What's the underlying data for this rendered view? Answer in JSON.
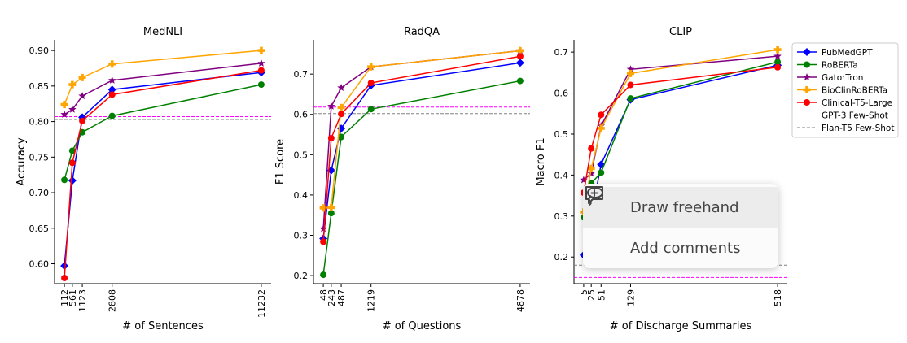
{
  "chart_data": [
    {
      "type": "line",
      "title": "MedNLI",
      "xlabel": "# of Sentences",
      "ylabel": "Accuracy",
      "x": [
        112,
        561,
        1123,
        2808,
        11232
      ],
      "xticks": [
        "112",
        "561",
        "1123",
        "2808",
        "11232"
      ],
      "ylim": [
        0.572,
        0.915
      ],
      "yticks": [
        0.6,
        0.65,
        0.7,
        0.75,
        0.8,
        0.85,
        0.9
      ],
      "ytick_labels": [
        "0.60",
        "0.65",
        "0.70",
        "0.75",
        "0.80",
        "0.85",
        "0.90"
      ],
      "series": [
        {
          "name": "PubMedGPT",
          "values": [
            0.597,
            0.717,
            0.806,
            0.845,
            0.869
          ]
        },
        {
          "name": "RoBERTa",
          "values": [
            0.718,
            0.759,
            0.785,
            0.808,
            0.852
          ]
        },
        {
          "name": "GatorTron",
          "values": [
            0.81,
            0.817,
            0.836,
            0.858,
            0.882
          ]
        },
        {
          "name": "BioClinRoBERTa",
          "values": [
            0.824,
            0.852,
            0.862,
            0.881,
            0.9
          ]
        },
        {
          "name": "Clinical-T5-Large",
          "values": [
            0.58,
            0.742,
            0.801,
            0.838,
            0.872
          ]
        }
      ],
      "hlines": [
        {
          "name": "GPT-3 Few-Shot",
          "value": 0.807
        },
        {
          "name": "Flan-T5 Few-Shot",
          "value": 0.803
        }
      ]
    },
    {
      "type": "line",
      "title": "RadQA",
      "xlabel": "# of Questions",
      "ylabel": "F1 Score",
      "x": [
        48,
        243,
        487,
        1219,
        4878
      ],
      "xticks": [
        "48",
        "243",
        "487",
        "1219",
        "4878"
      ],
      "ylim": [
        0.18,
        0.785
      ],
      "yticks": [
        0.2,
        0.3,
        0.4,
        0.5,
        0.6,
        0.7
      ],
      "ytick_labels": [
        "0.2",
        "0.3",
        "0.4",
        "0.5",
        "0.6",
        "0.7"
      ],
      "series": [
        {
          "name": "PubMedGPT",
          "values": [
            0.292,
            0.461,
            0.565,
            0.672,
            0.728
          ]
        },
        {
          "name": "RoBERTa",
          "values": [
            0.202,
            0.355,
            0.544,
            0.613,
            0.683
          ]
        },
        {
          "name": "GatorTron",
          "values": [
            0.316,
            0.62,
            0.666,
            0.718,
            0.758
          ]
        },
        {
          "name": "BioClinRoBERTa",
          "values": [
            0.368,
            0.369,
            0.617,
            0.718,
            0.758
          ]
        },
        {
          "name": "Clinical-T5-Large",
          "values": [
            0.284,
            0.541,
            0.601,
            0.678,
            0.744
          ]
        }
      ],
      "hlines": [
        {
          "name": "GPT-3 Few-Shot",
          "value": 0.618
        },
        {
          "name": "Flan-T5 Few-Shot",
          "value": 0.602
        }
      ]
    },
    {
      "type": "line",
      "title": "CLIP",
      "xlabel": "# of Discharge Summaries",
      "ylabel": "Macro F1",
      "x": [
        5,
        25,
        51,
        129,
        518
      ],
      "xticks": [
        "5",
        "25",
        "51",
        "129",
        "518"
      ],
      "ylim": [
        0.135,
        0.73
      ],
      "yticks": [
        0.2,
        0.3,
        0.4,
        0.5,
        0.6,
        0.7
      ],
      "ytick_labels": [
        "0.2",
        "0.3",
        "0.4",
        "0.5",
        "0.6",
        "0.7"
      ],
      "series": [
        {
          "name": "PubMedGPT",
          "values": [
            0.205,
            0.3,
            0.426,
            0.584,
            0.668
          ]
        },
        {
          "name": "RoBERTa",
          "values": [
            0.297,
            0.38,
            0.406,
            0.587,
            0.676
          ]
        },
        {
          "name": "GatorTron",
          "values": [
            0.388,
            0.404,
            0.52,
            0.658,
            0.69
          ]
        },
        {
          "name": "BioClinRoBERTa",
          "values": [
            0.31,
            0.416,
            0.514,
            0.648,
            0.706
          ]
        },
        {
          "name": "Clinical-T5-Large",
          "values": [
            0.357,
            0.465,
            0.547,
            0.62,
            0.663
          ]
        }
      ],
      "hlines": [
        {
          "name": "GPT-3 Few-Shot",
          "value": 0.15
        },
        {
          "name": "Flan-T5 Few-Shot",
          "value": 0.18
        }
      ]
    }
  ],
  "legend": {
    "placement": "right",
    "entries": [
      {
        "name": "PubMedGPT",
        "color": "#0000ff",
        "marker": "diamond",
        "style": "solid"
      },
      {
        "name": "RoBERTa",
        "color": "#008000",
        "marker": "circle",
        "style": "solid"
      },
      {
        "name": "GatorTron",
        "color": "#800080",
        "marker": "star",
        "style": "solid"
      },
      {
        "name": "BioClinRoBERTa",
        "color": "#ffa500",
        "marker": "plus",
        "style": "solid"
      },
      {
        "name": "Clinical-T5-Large",
        "color": "#ff0000",
        "marker": "circle",
        "style": "solid"
      },
      {
        "name": "GPT-3 Few-Shot",
        "color": "#ff00ff",
        "marker": "none",
        "style": "dashed"
      },
      {
        "name": "Flan-T5 Few-Shot",
        "color": "#808080",
        "marker": "none",
        "style": "dashed"
      }
    ]
  },
  "context_menu": {
    "items": [
      {
        "label": "Draw freehand",
        "icon": "lasso-icon"
      },
      {
        "label": "Add comments",
        "icon": "comment-plus-icon"
      }
    ]
  }
}
